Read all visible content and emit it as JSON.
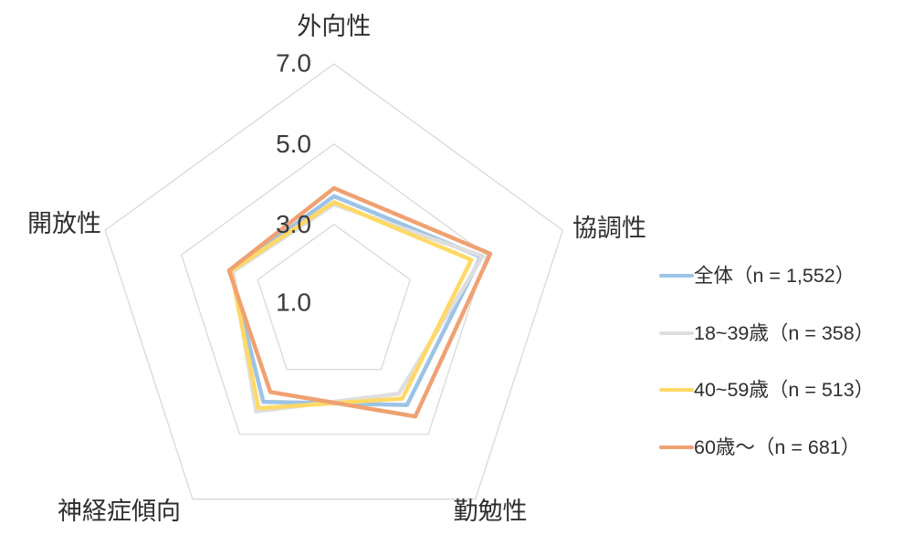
{
  "chart_data": {
    "type": "radar",
    "title": "",
    "categories": [
      "外向性",
      "協調性",
      "勤勉性",
      "神経症傾向",
      "開放性"
    ],
    "axis": {
      "min": 1.0,
      "max": 7.0,
      "tick_interval": 2.0,
      "tick_labels": [
        "7.0",
        "5.0",
        "3.0",
        "1.0"
      ]
    },
    "grid": "on",
    "grid_color": "#D9D9D9",
    "legend_position": "right",
    "series": [
      {
        "name": "全体",
        "n": "1,552",
        "legend_label": "全体（n = 1,552）",
        "slug": "series-line-overall",
        "color": "#9DC3E6",
        "values": [
          3.7,
          4.85,
          4.1,
          4.0,
          3.7
        ]
      },
      {
        "name": "18~39歳",
        "n": "358",
        "legend_label": "18~39歳（n = 358）",
        "slug": "series-line-age-18-39",
        "color": "#DEDEDE",
        "values": [
          3.5,
          4.9,
          3.75,
          4.3,
          3.65
        ]
      },
      {
        "name": "40~59歳",
        "n": "513",
        "legend_label": "40~59歳（n = 513）",
        "slug": "series-line-age-40-59",
        "color": "#FFD965",
        "values": [
          3.55,
          4.6,
          3.9,
          4.2,
          3.7
        ]
      },
      {
        "name": "60歳～",
        "n": "681",
        "legend_label": "60歳～（n = 681）",
        "slug": "series-line-age-60-plus",
        "color": "#F0A172",
        "values": [
          3.9,
          5.1,
          4.45,
          3.7,
          3.75
        ]
      }
    ]
  }
}
